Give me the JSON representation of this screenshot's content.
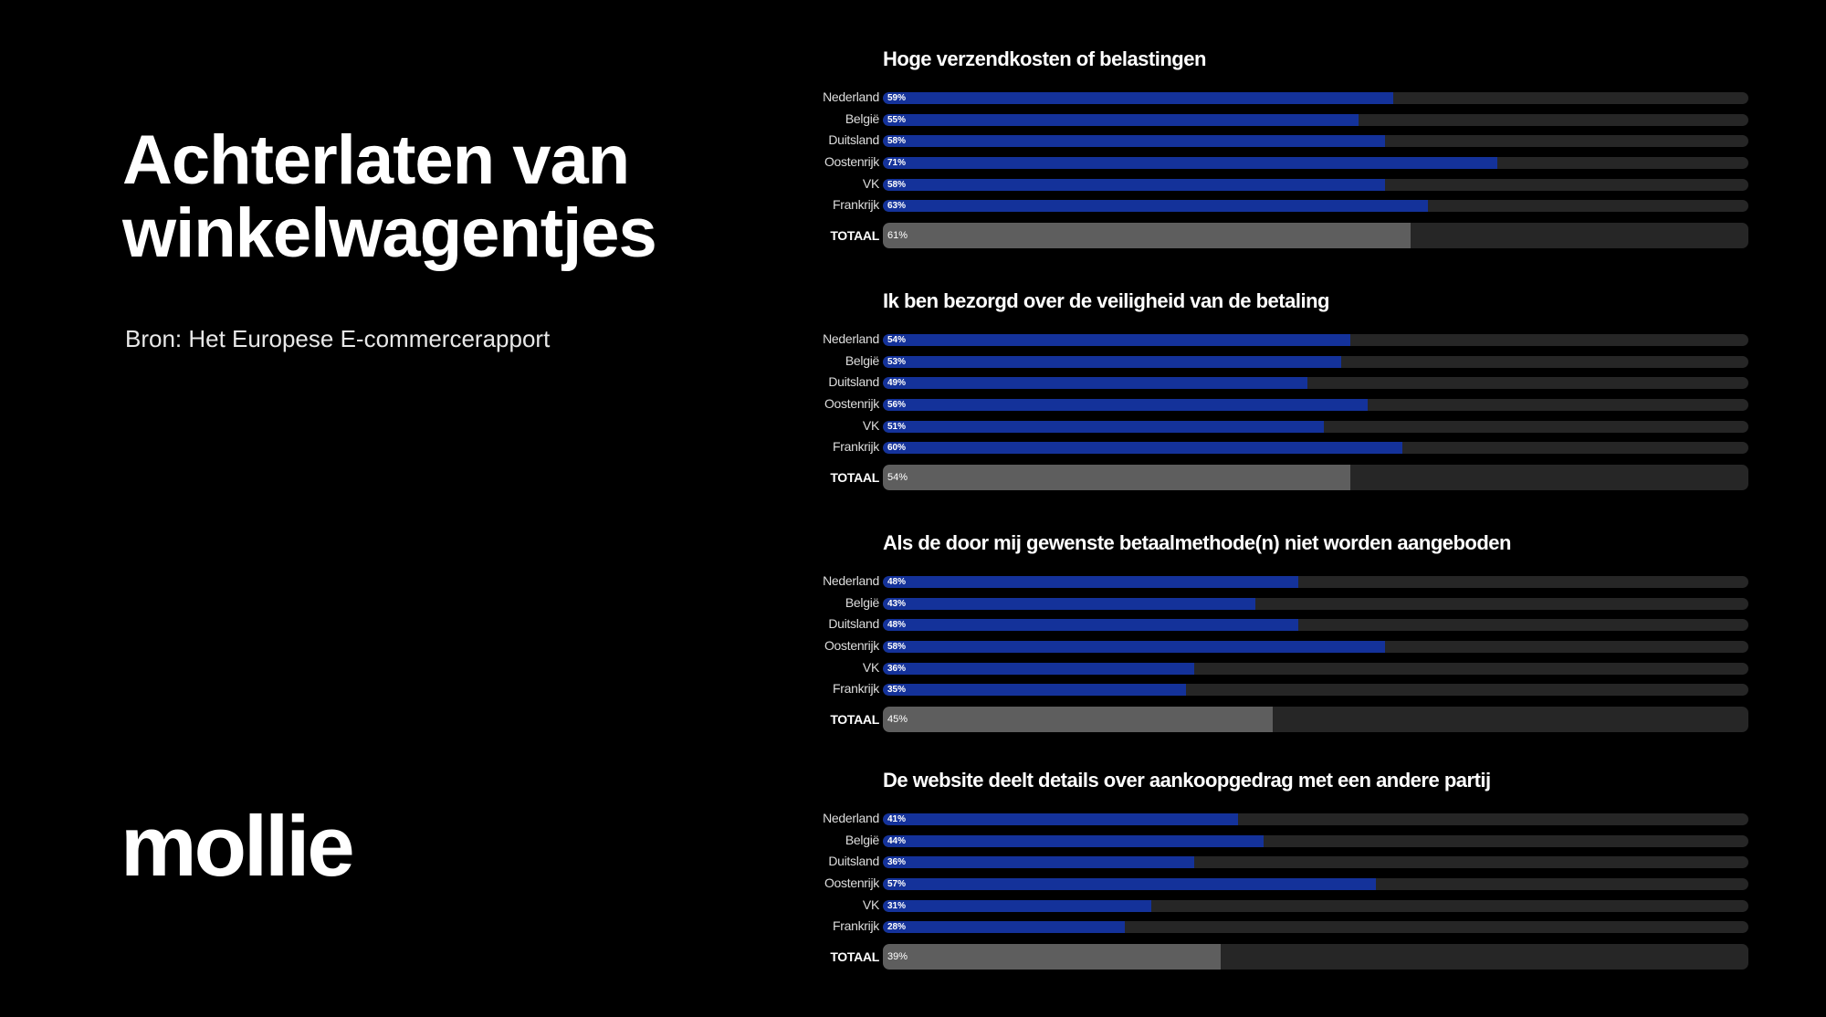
{
  "heading": [
    "Achterlaten van",
    "winkelwagentjes"
  ],
  "source": "Bron: Het Europese E-commercerapport",
  "logo": "mollie",
  "colors": {
    "background": "#000000",
    "country_bar": "#14329a",
    "total_bar": "#5e5e5e",
    "track": "#262626"
  },
  "chart_data": [
    {
      "type": "bar",
      "orientation": "horizontal",
      "title": "Hoge verzendkosten of belastingen",
      "categories": [
        "Nederland",
        "België",
        "Duitsland",
        "Oostenrijk",
        "VK",
        "Frankrijk",
        "TOTAAL"
      ],
      "values": [
        59,
        55,
        58,
        71,
        58,
        63,
        61
      ],
      "labels": [
        "59%",
        "55%",
        "58%",
        "71%",
        "58%",
        "63%",
        "61%"
      ],
      "xlim": [
        0,
        100
      ]
    },
    {
      "type": "bar",
      "orientation": "horizontal",
      "title": "Ik ben bezorgd over de veiligheid van de betaling",
      "categories": [
        "Nederland",
        "België",
        "Duitsland",
        "Oostenrijk",
        "VK",
        "Frankrijk",
        "TOTAAL"
      ],
      "values": [
        54,
        53,
        49,
        56,
        51,
        60,
        54
      ],
      "labels": [
        "54%",
        "53%",
        "49%",
        "56%",
        "51%",
        "60%",
        "54%"
      ],
      "xlim": [
        0,
        100
      ]
    },
    {
      "type": "bar",
      "orientation": "horizontal",
      "title": "Als de door mij gewenste betaalmethode(n) niet worden aangeboden",
      "categories": [
        "Nederland",
        "België",
        "Duitsland",
        "Oostenrijk",
        "VK",
        "Frankrijk",
        "TOTAAL"
      ],
      "values": [
        48,
        43,
        48,
        58,
        36,
        35,
        45
      ],
      "labels": [
        "48%",
        "43%",
        "48%",
        "58%",
        "36%",
        "35%",
        "45%"
      ],
      "xlim": [
        0,
        100
      ]
    },
    {
      "type": "bar",
      "orientation": "horizontal",
      "title": "De website deelt details over aankoopgedrag met een andere partij",
      "categories": [
        "Nederland",
        "België",
        "Duitsland",
        "Oostenrijk",
        "VK",
        "Frankrijk",
        "TOTAAL"
      ],
      "values": [
        41,
        44,
        36,
        57,
        31,
        28,
        39
      ],
      "labels": [
        "41%",
        "44%",
        "36%",
        "57%",
        "31%",
        "28%",
        "39%"
      ],
      "xlim": [
        0,
        100
      ]
    }
  ]
}
